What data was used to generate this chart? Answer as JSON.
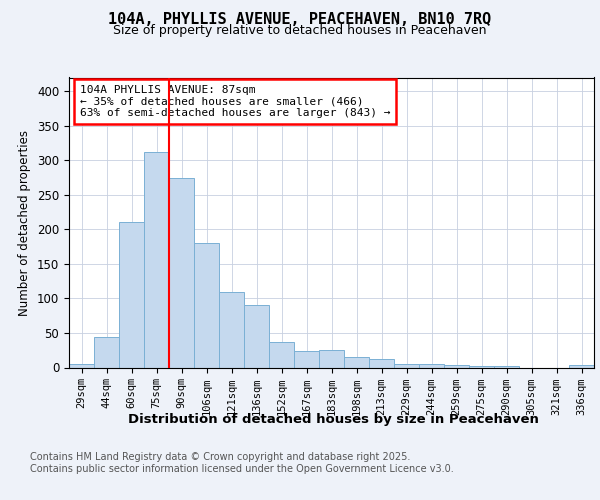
{
  "title": "104A, PHYLLIS AVENUE, PEACEHAVEN, BN10 7RQ",
  "subtitle": "Size of property relative to detached houses in Peacehaven",
  "xlabel": "Distribution of detached houses by size in Peacehaven",
  "ylabel": "Number of detached properties",
  "categories": [
    "29sqm",
    "44sqm",
    "60sqm",
    "75sqm",
    "90sqm",
    "106sqm",
    "121sqm",
    "136sqm",
    "152sqm",
    "167sqm",
    "183sqm",
    "198sqm",
    "213sqm",
    "229sqm",
    "244sqm",
    "259sqm",
    "275sqm",
    "290sqm",
    "305sqm",
    "321sqm",
    "336sqm"
  ],
  "values": [
    5,
    44,
    210,
    312,
    274,
    180,
    110,
    90,
    37,
    24,
    25,
    15,
    13,
    5,
    5,
    4,
    2,
    2,
    0,
    0,
    4
  ],
  "bar_color": "#c5d9ee",
  "bar_edge_color": "#7ab0d4",
  "vline_x": 3.5,
  "vline_color": "red",
  "annotation_text": "104A PHYLLIS AVENUE: 87sqm\n← 35% of detached houses are smaller (466)\n63% of semi-detached houses are larger (843) →",
  "annotation_box_color": "white",
  "annotation_box_edge": "red",
  "footer": "Contains HM Land Registry data © Crown copyright and database right 2025.\nContains public sector information licensed under the Open Government Licence v3.0.",
  "ylim": [
    0,
    420
  ],
  "yticks": [
    0,
    50,
    100,
    150,
    200,
    250,
    300,
    350,
    400
  ],
  "background_color": "#eef2f9",
  "plot_background": "white",
  "grid_color": "#c8d0e0"
}
